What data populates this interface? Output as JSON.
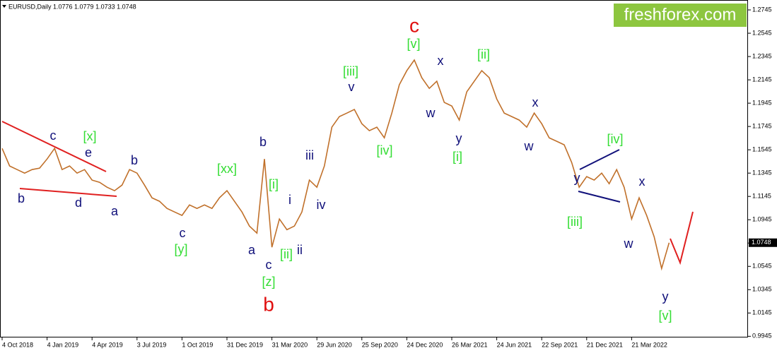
{
  "chart_data": {
    "type": "line",
    "title": "EURUSD,Daily  1.0776 1.0779 1.0733 1.0748",
    "logo": "freshforex.com",
    "categories": [
      "4 Oct 2018",
      null,
      null,
      null,
      null,
      null,
      "4 Jan 2019",
      null,
      null,
      null,
      null,
      null,
      "4 Apr 2019",
      null,
      null,
      null,
      null,
      null,
      "3 Jul 2019",
      null,
      null,
      null,
      null,
      null,
      "1 Oct 2019",
      null,
      null,
      null,
      null,
      null,
      "31 Dec 2019",
      null,
      null,
      null,
      null,
      null,
      "31 Mar 2020",
      null,
      null,
      null,
      null,
      null,
      "29 Jun 2020",
      null,
      null,
      null,
      null,
      null,
      "25 Sep 2020",
      null,
      null,
      null,
      null,
      null,
      "24 Dec 2020",
      null,
      null,
      null,
      null,
      null,
      "26 Mar 2021",
      null,
      null,
      null,
      null,
      null,
      "24 Jun 2021",
      null,
      null,
      null,
      null,
      null,
      "22 Sep 2021",
      null,
      null,
      null,
      null,
      null,
      "21 Dec 2021",
      null,
      null,
      null,
      null,
      null,
      "21 Mar 2022",
      null,
      null,
      null,
      null,
      null
    ],
    "series": [
      {
        "name": "EURUSD",
        "color": "#c0702a",
        "values": [
          1.1557,
          1.1406,
          1.1375,
          1.1345,
          1.1375,
          1.1388,
          1.1466,
          1.1557,
          1.1375,
          1.1406,
          1.1345,
          1.1375,
          1.1285,
          1.1266,
          1.1224,
          1.1194,
          1.1242,
          1.1375,
          1.1345,
          1.1242,
          1.1133,
          1.1103,
          1.1042,
          1.1012,
          1.0982,
          1.1072,
          1.1042,
          1.1072,
          1.1042,
          1.1133,
          1.1194,
          1.1103,
          1.1012,
          1.0891,
          1.083,
          1.1466,
          1.0709,
          1.0951,
          1.086,
          1.0891,
          1.1012,
          1.1285,
          1.1224,
          1.1406,
          1.1739,
          1.183,
          1.186,
          1.1891,
          1.1769,
          1.1709,
          1.1739,
          1.1648,
          1.186,
          1.2103,
          1.2224,
          1.2315,
          1.2163,
          1.2072,
          1.2133,
          1.1951,
          1.1921,
          1.18,
          1.2042,
          1.2133,
          1.2224,
          1.2163,
          1.1981,
          1.186,
          1.183,
          1.18,
          1.1739,
          1.186,
          1.1769,
          1.1648,
          1.1618,
          1.1588,
          1.1436,
          1.1224,
          1.1315,
          1.1285,
          1.1345,
          1.1254,
          1.1375,
          1.1224,
          1.0951,
          1.1133,
          1.0982,
          1.08,
          1.0527,
          1.0748
        ]
      }
    ],
    "last_price": 1.0748,
    "ylim": [
      0.9935,
      1.283
    ],
    "yticks": [
      1.2745,
      1.2545,
      1.2345,
      1.2145,
      1.1945,
      1.1745,
      1.1545,
      1.1345,
      1.1145,
      1.0945,
      1.0745,
      1.0545,
      1.0345,
      1.0145,
      0.9945
    ],
    "annotations": [
      {
        "text": "b",
        "color": "#10107a"
      },
      {
        "text": "c",
        "color": "#10107a"
      },
      {
        "text": "[x]",
        "color": "#33dd33"
      },
      {
        "text": "e",
        "color": "#10107a"
      },
      {
        "text": "d",
        "color": "#10107a"
      },
      {
        "text": "a",
        "color": "#10107a"
      },
      {
        "text": "b",
        "color": "#10107a"
      },
      {
        "text": "c",
        "color": "#10107a"
      },
      {
        "text": "[y]",
        "color": "#33dd33"
      },
      {
        "text": "[xx]",
        "color": "#33dd33"
      },
      {
        "text": "b",
        "color": "#10107a"
      },
      {
        "text": "a",
        "color": "#10107a"
      },
      {
        "text": "[i]",
        "color": "#33dd33"
      },
      {
        "text": "c",
        "color": "#10107a"
      },
      {
        "text": "[z]",
        "color": "#33dd33"
      },
      {
        "text": "b",
        "color": "#e01010"
      },
      {
        "text": "i",
        "color": "#10107a"
      },
      {
        "text": "[ii]",
        "color": "#33dd33"
      },
      {
        "text": "ii",
        "color": "#10107a"
      },
      {
        "text": "iii",
        "color": "#10107a"
      },
      {
        "text": "iv",
        "color": "#10107a"
      },
      {
        "text": "[iii]",
        "color": "#33dd33"
      },
      {
        "text": "v",
        "color": "#10107a"
      },
      {
        "text": "[iv]",
        "color": "#33dd33"
      },
      {
        "text": "c",
        "color": "#e01010"
      },
      {
        "text": "[v]",
        "color": "#33dd33"
      },
      {
        "text": "x",
        "color": "#10107a"
      },
      {
        "text": "w",
        "color": "#10107a"
      },
      {
        "text": "y",
        "color": "#10107a"
      },
      {
        "text": "[i]",
        "color": "#33dd33"
      },
      {
        "text": "[ii]",
        "color": "#33dd33"
      },
      {
        "text": "x",
        "color": "#10107a"
      },
      {
        "text": "w",
        "color": "#10107a"
      },
      {
        "text": "[iv]",
        "color": "#33dd33"
      },
      {
        "text": "y",
        "color": "#10107a"
      },
      {
        "text": "[iii]",
        "color": "#33dd33"
      },
      {
        "text": "x",
        "color": "#10107a"
      },
      {
        "text": "w",
        "color": "#10107a"
      },
      {
        "text": "y",
        "color": "#10107a"
      },
      {
        "text": "[v]",
        "color": "#33dd33"
      }
    ]
  }
}
